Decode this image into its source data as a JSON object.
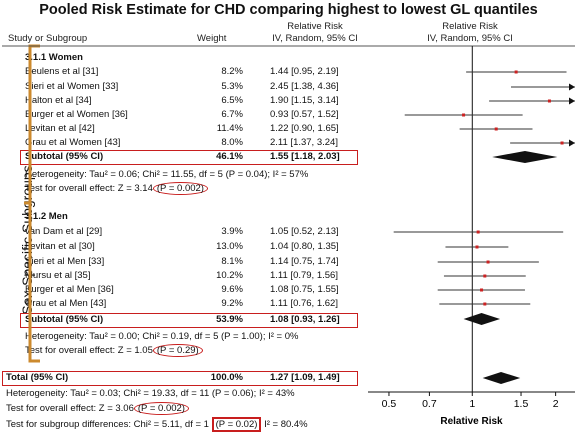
{
  "title": "Pooled Risk Estimate for CHD comparing highest to lowest GL quantiles",
  "headers": {
    "study": "Study or Subgroup",
    "weight": "Weight",
    "rr_top": "Relative Risk",
    "rr_bottom": "IV, Random, 95% CI",
    "plot_top": "Relative Risk",
    "plot_bottom": "IV, Random, 95% CI"
  },
  "side_label": "Sex-Specific Subgroups",
  "groups": [
    {
      "name": "3.1.1 Women",
      "subtotal_label": "Subtotal (95% CI)",
      "subtotal_weight": "46.1%",
      "subtotal_ci": "1.55 [1.18, 2.03]",
      "heterogeneity": "Heterogeneity: Tau² = 0.06; Chi² = 11.55, df = 5 (P = 0.04); I² = 57%",
      "overall_prefix": "Test for overall effect: Z = 3.14",
      "overall_p": "(P = 0.002)"
    },
    {
      "name": "3.1.2 Men",
      "subtotal_label": "Subtotal (95% CI)",
      "subtotal_weight": "53.9%",
      "subtotal_ci": "1.08 [0.93, 1.26]",
      "heterogeneity": "Heterogeneity: Tau² = 0.00; Chi² = 0.19, df = 5 (P = 1.00); I² = 0%",
      "overall_prefix": "Test for overall effect: Z = 1.05",
      "overall_p": "(P = 0.29)"
    }
  ],
  "total": {
    "label": "Total (95% CI)",
    "weight": "100.0%",
    "ci": "1.27 [1.09, 1.49]",
    "heterogeneity": "Heterogeneity: Tau² = 0.03; Chi² = 19.33, df = 11 (P = 0.06); I² = 43%",
    "overall_prefix": "Test for overall effect: Z = 3.06",
    "overall_p": "(P = 0.002)",
    "subgroup_prefix": "Test for subgroup differences: Chi² = 5.11, df = 1",
    "subgroup_p": "(P = 0.02)",
    "subgroup_suffix": "I² = 80.4%"
  },
  "colors": {
    "marker": "#cc2222",
    "highlight": "#c81e1e",
    "line": "#333333",
    "frame": "#cc8a2e"
  },
  "chart_data": {
    "type": "forest",
    "xscale": "log",
    "xlim": [
      0.42,
      2.35
    ],
    "xticks": [
      "0.5",
      "0.7",
      "1",
      "1.5",
      "2"
    ],
    "xlabel": "Relative Risk",
    "studies": [
      {
        "group": 0,
        "name": "Beulens et al [31]",
        "weight": "8.2%",
        "ci_text": "1.44 [0.95, 2.19]",
        "rr": 1.44,
        "lo": 0.95,
        "hi": 2.19
      },
      {
        "group": 0,
        "name": "Sieri et al Women [33]",
        "weight": "5.3%",
        "ci_text": "2.45 [1.38, 4.36]",
        "rr": 2.45,
        "lo": 1.38,
        "hi": 4.36
      },
      {
        "group": 0,
        "name": "Halton et al [34]",
        "weight": "6.5%",
        "ci_text": "1.90 [1.15, 3.14]",
        "rr": 1.9,
        "lo": 1.15,
        "hi": 3.14
      },
      {
        "group": 0,
        "name": "Burger et al Women [36]",
        "weight": "6.7%",
        "ci_text": "0.93 [0.57, 1.52]",
        "rr": 0.93,
        "lo": 0.57,
        "hi": 1.52
      },
      {
        "group": 0,
        "name": "Levitan et al [42]",
        "weight": "11.4%",
        "ci_text": "1.22 [0.90, 1.65]",
        "rr": 1.22,
        "lo": 0.9,
        "hi": 1.65
      },
      {
        "group": 0,
        "name": "Grau et al Women [43]",
        "weight": "8.0%",
        "ci_text": "2.11 [1.37, 3.24]",
        "rr": 2.11,
        "lo": 1.37,
        "hi": 3.24
      },
      {
        "group": 1,
        "name": "van Dam et al [29]",
        "weight": "3.9%",
        "ci_text": "1.05 [0.52, 2.13]",
        "rr": 1.05,
        "lo": 0.52,
        "hi": 2.13
      },
      {
        "group": 1,
        "name": "Levitan et al [30]",
        "weight": "13.0%",
        "ci_text": "1.04 [0.80, 1.35]",
        "rr": 1.04,
        "lo": 0.8,
        "hi": 1.35
      },
      {
        "group": 1,
        "name": "Sieri et al Men [33]",
        "weight": "8.1%",
        "ci_text": "1.14 [0.75, 1.74]",
        "rr": 1.14,
        "lo": 0.75,
        "hi": 1.74
      },
      {
        "group": 1,
        "name": "Mursu et al [35]",
        "weight": "10.2%",
        "ci_text": "1.11 [0.79, 1.56]",
        "rr": 1.11,
        "lo": 0.79,
        "hi": 1.56
      },
      {
        "group": 1,
        "name": "Burger et al Men [36]",
        "weight": "9.6%",
        "ci_text": "1.08 [0.75, 1.55]",
        "rr": 1.08,
        "lo": 0.75,
        "hi": 1.55
      },
      {
        "group": 1,
        "name": "Grau et al Men [43]",
        "weight": "9.2%",
        "ci_text": "1.11 [0.76, 1.62]",
        "rr": 1.11,
        "lo": 0.76,
        "hi": 1.62
      }
    ],
    "subtotals": [
      {
        "rr": 1.55,
        "lo": 1.18,
        "hi": 2.03
      },
      {
        "rr": 1.08,
        "lo": 0.93,
        "hi": 1.26
      }
    ],
    "overall": {
      "rr": 1.27,
      "lo": 1.09,
      "hi": 1.49
    }
  }
}
